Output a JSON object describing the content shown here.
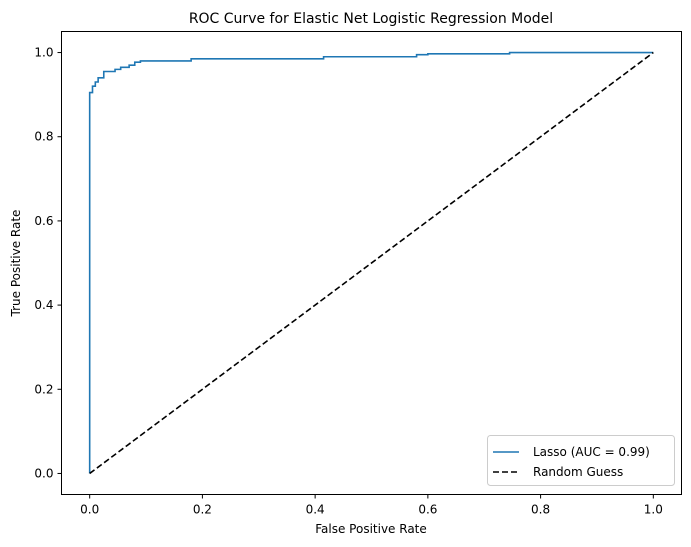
{
  "chart_data": {
    "type": "line",
    "title": "ROC Curve for Elastic Net Logistic Regression Model",
    "xlabel": "False Positive Rate",
    "ylabel": "True Positive Rate",
    "xlim": [
      -0.05,
      1.05
    ],
    "ylim": [
      -0.05,
      1.05
    ],
    "xticks": [
      0.0,
      0.2,
      0.4,
      0.6,
      0.8,
      1.0
    ],
    "yticks": [
      0.0,
      0.2,
      0.4,
      0.6,
      0.8,
      1.0
    ],
    "xtick_labels": [
      "0.0",
      "0.2",
      "0.4",
      "0.6",
      "0.8",
      "1.0"
    ],
    "ytick_labels": [
      "0.0",
      "0.2",
      "0.4",
      "0.6",
      "0.8",
      "1.0"
    ],
    "grid": false,
    "legend_position": "lower-right",
    "series": [
      {
        "name": "Lasso (AUC = 0.99)",
        "color": "#1f77b4",
        "style": "solid-step",
        "x": [
          0.0,
          0.0,
          0.005,
          0.005,
          0.01,
          0.01,
          0.015,
          0.015,
          0.025,
          0.025,
          0.045,
          0.045,
          0.055,
          0.055,
          0.07,
          0.07,
          0.08,
          0.08,
          0.09,
          0.09,
          0.18,
          0.18,
          0.415,
          0.415,
          0.58,
          0.58,
          0.6,
          0.6,
          0.745,
          0.745,
          1.0
        ],
        "y": [
          0.0,
          0.905,
          0.905,
          0.92,
          0.92,
          0.93,
          0.93,
          0.94,
          0.94,
          0.955,
          0.955,
          0.96,
          0.96,
          0.965,
          0.965,
          0.97,
          0.97,
          0.977,
          0.977,
          0.98,
          0.98,
          0.985,
          0.985,
          0.99,
          0.99,
          0.995,
          0.995,
          0.997,
          0.997,
          1.0,
          1.0
        ]
      },
      {
        "name": "Random Guess",
        "color": "#000000",
        "style": "dashed",
        "x": [
          0.0,
          1.0
        ],
        "y": [
          0.0,
          1.0
        ]
      }
    ]
  }
}
